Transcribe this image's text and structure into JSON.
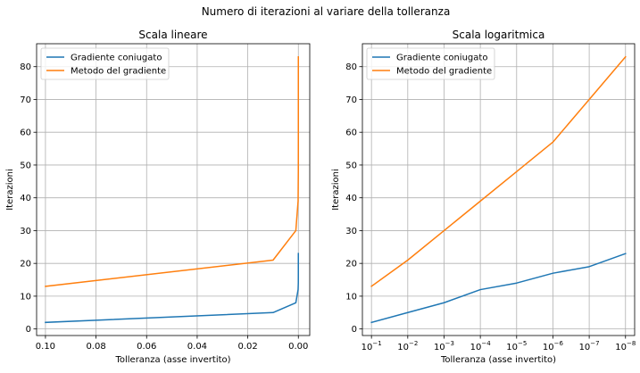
{
  "figure": {
    "suptitle": "Numero di iterazioni al variare della tolleranza"
  },
  "chart_data": [
    {
      "type": "line",
      "title": "Scala lineare",
      "xlabel": "Tolleranza (asse invertito)",
      "ylabel": "Iterazioni",
      "x_scale": "linear",
      "x_inverted": true,
      "xlim": [
        0.1035,
        -0.0045
      ],
      "ylim": [
        -2,
        87
      ],
      "grid": true,
      "legend_position": "top-left",
      "x_ticks": [
        0.1,
        0.08,
        0.06,
        0.04,
        0.02,
        0.0
      ],
      "x_tick_labels": [
        "0.10",
        "0.08",
        "0.06",
        "0.04",
        "0.02",
        "0.00"
      ],
      "y_ticks": [
        0,
        10,
        20,
        30,
        40,
        50,
        60,
        70,
        80
      ],
      "y_tick_labels": [
        "0",
        "10",
        "20",
        "30",
        "40",
        "50",
        "60",
        "70",
        "80"
      ],
      "x": [
        0.1,
        0.01,
        0.001,
        0.0001,
        1e-05,
        1e-06,
        1e-07,
        1e-08
      ],
      "series": [
        {
          "name": "Gradiente coniugato",
          "color": "#1f77b4",
          "values": [
            2,
            5,
            8,
            12,
            14,
            17,
            19,
            23
          ]
        },
        {
          "name": "Metodo del gradiente",
          "color": "#ff7f0e",
          "values": [
            13,
            21,
            30,
            39,
            48,
            57,
            70,
            83
          ]
        }
      ]
    },
    {
      "type": "line",
      "title": "Scala logaritmica",
      "xlabel": "Tolleranza (asse invertito)",
      "ylabel": "Iterazioni",
      "x_scale": "log",
      "x_inverted": true,
      "xlim": [
        0.1778,
        5.6e-09
      ],
      "ylim": [
        -2,
        87
      ],
      "grid": true,
      "legend_position": "top-left",
      "x_ticks": [
        0.1,
        0.01,
        0.001,
        0.0001,
        1e-05,
        1e-06,
        1e-07,
        1e-08
      ],
      "x_tick_base": "10",
      "x_tick_exponents": [
        "−1",
        "−2",
        "−3",
        "−4",
        "−5",
        "−6",
        "−7",
        "−8"
      ],
      "y_ticks": [
        0,
        10,
        20,
        30,
        40,
        50,
        60,
        70,
        80
      ],
      "y_tick_labels": [
        "0",
        "10",
        "20",
        "30",
        "40",
        "50",
        "60",
        "70",
        "80"
      ],
      "x": [
        0.1,
        0.01,
        0.001,
        0.0001,
        1e-05,
        1e-06,
        1e-07,
        1e-08
      ],
      "series": [
        {
          "name": "Gradiente coniugato",
          "color": "#1f77b4",
          "values": [
            2,
            5,
            8,
            12,
            14,
            17,
            19,
            23
          ]
        },
        {
          "name": "Metodo del gradiente",
          "color": "#ff7f0e",
          "values": [
            13,
            21,
            30,
            39,
            48,
            57,
            70,
            83
          ]
        }
      ]
    }
  ]
}
